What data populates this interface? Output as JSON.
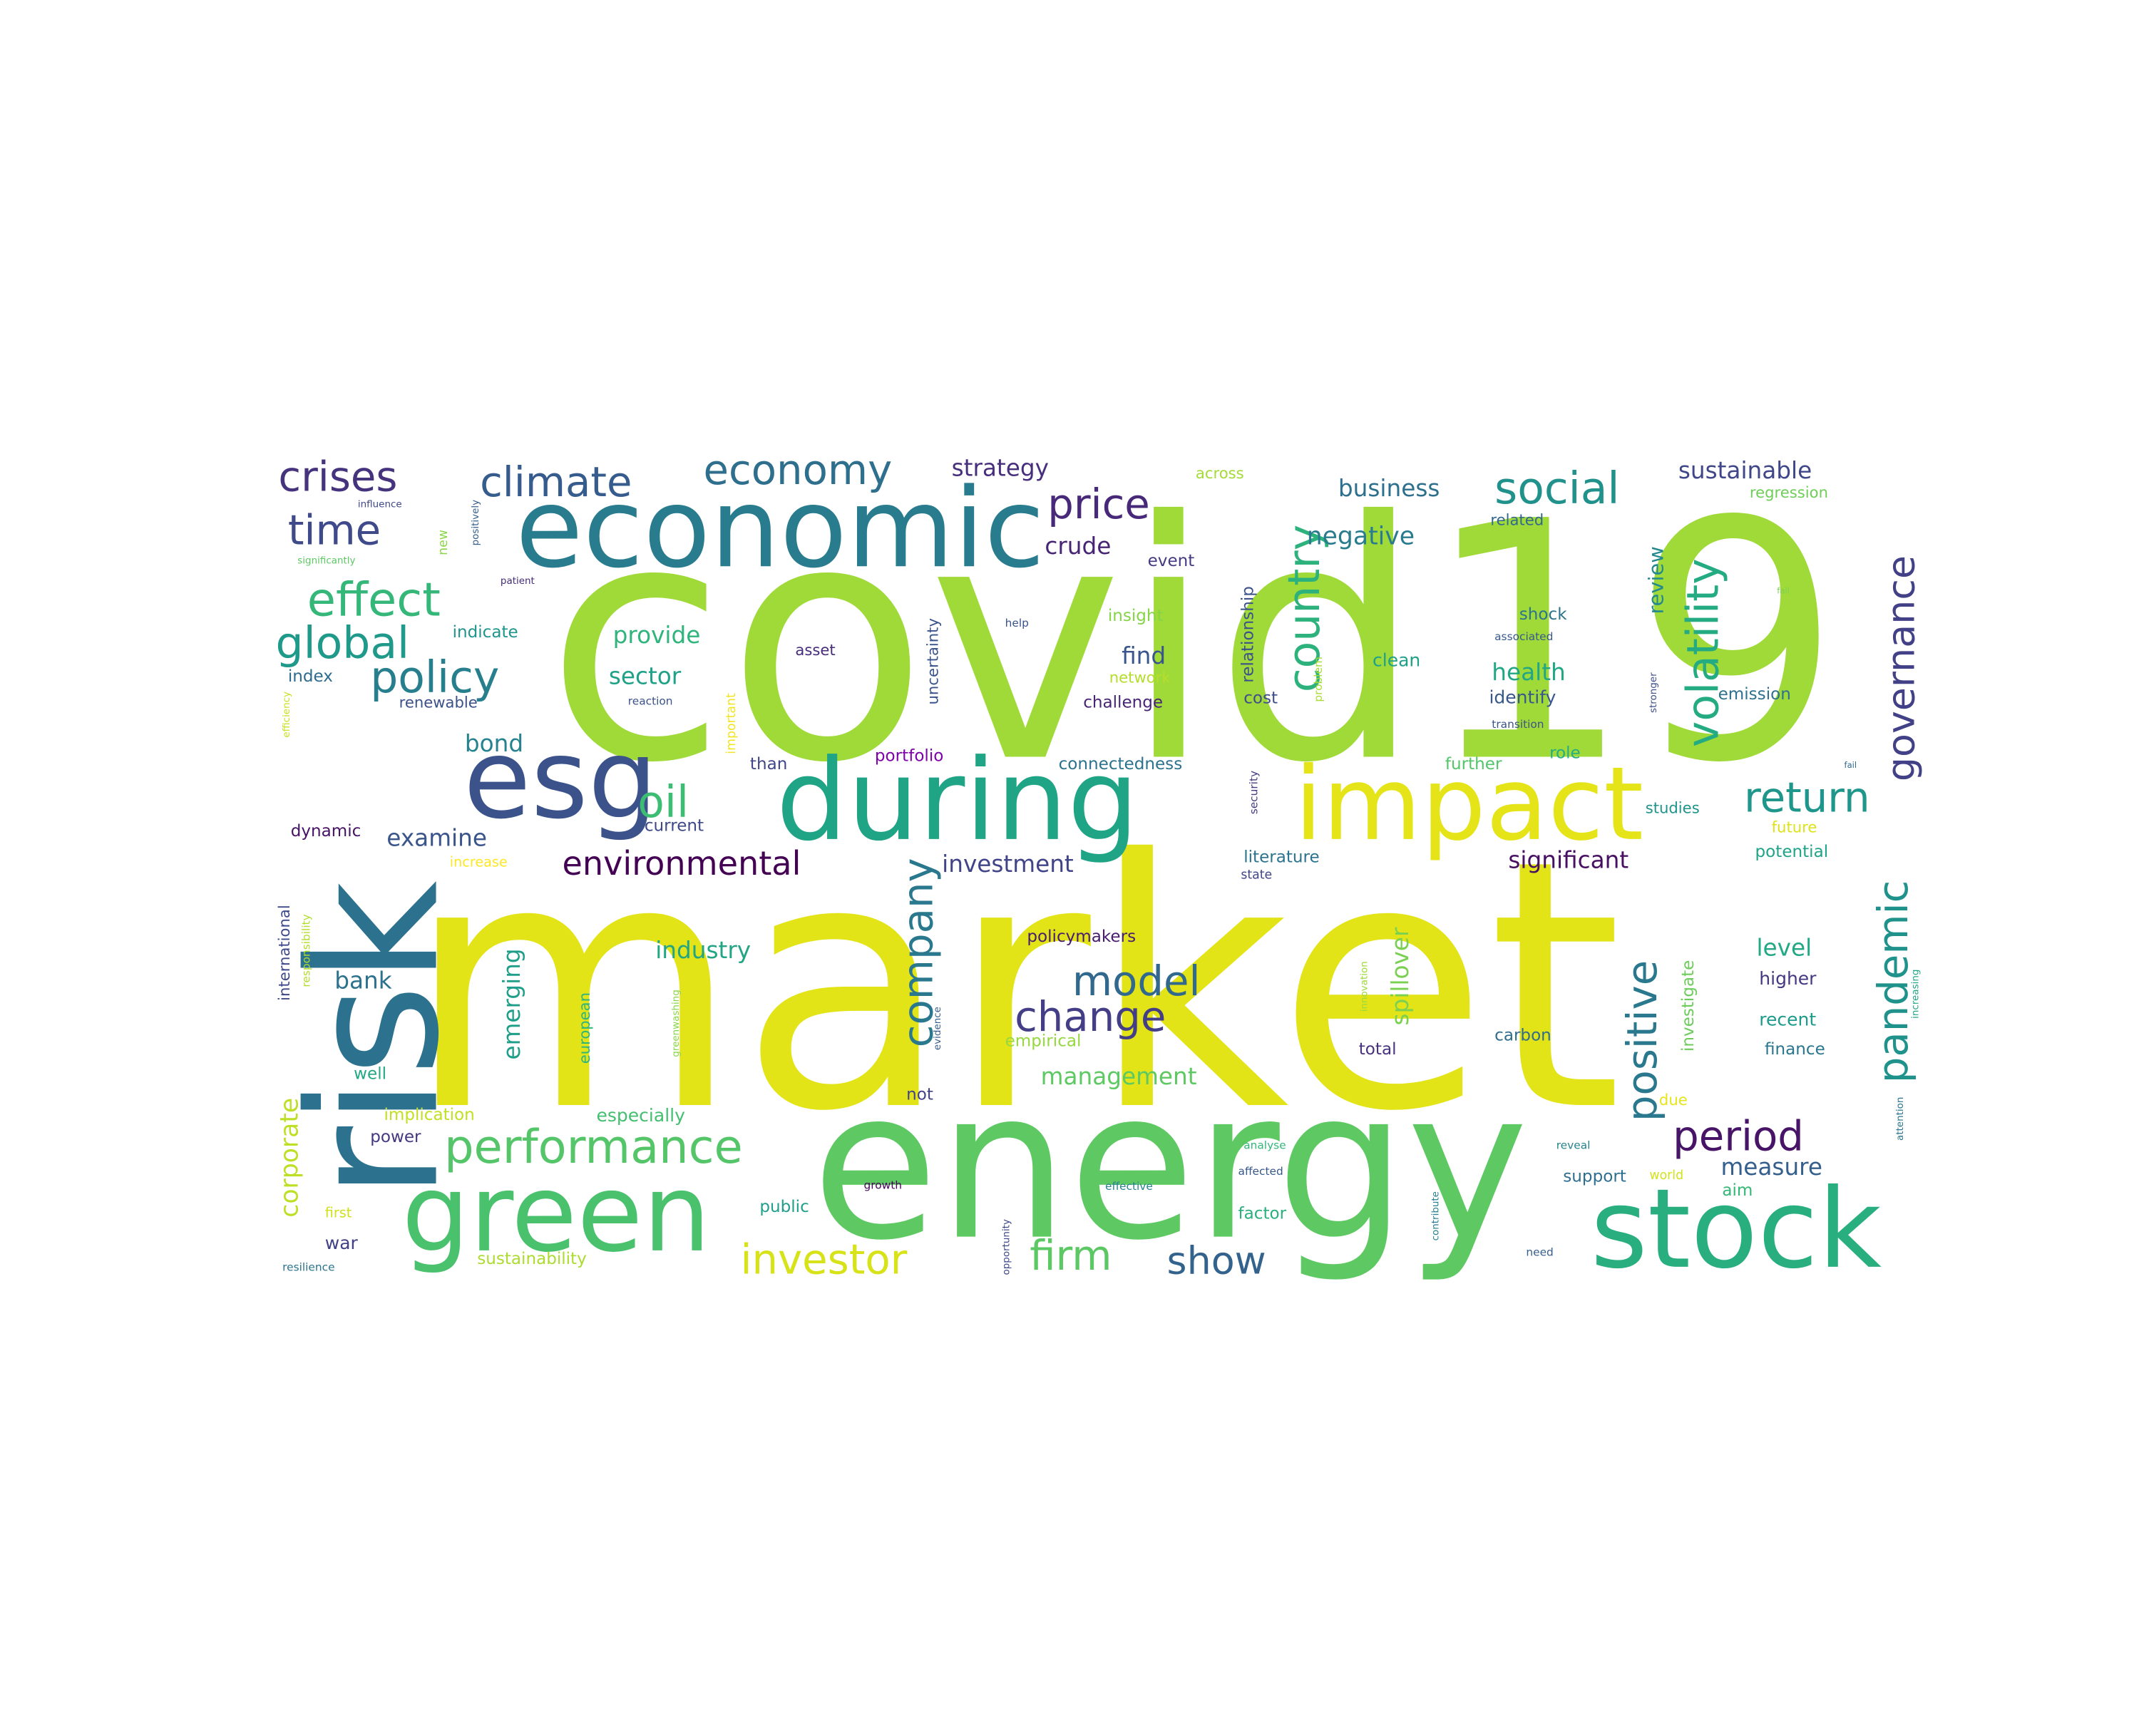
{
  "words": [
    {
      "text": "covid19",
      "color": "#a0da39"
    },
    {
      "text": "market",
      "color": "#e2e418"
    },
    {
      "text": "energy",
      "color": "#5ec962"
    },
    {
      "text": "risk",
      "color": "#2c728e"
    },
    {
      "text": "economic",
      "color": "#287c8e"
    },
    {
      "text": "during",
      "color": "#20a486"
    },
    {
      "text": "impact",
      "color": "#e5e419"
    },
    {
      "text": "green",
      "color": "#4ac16d"
    },
    {
      "text": "stock",
      "color": "#29af7f"
    },
    {
      "text": "esg",
      "color": "#3b528b"
    },
    {
      "text": "crises",
      "color": "#46337e"
    },
    {
      "text": "climate",
      "color": "#365c8d"
    },
    {
      "text": "economy",
      "color": "#2e6f8e"
    },
    {
      "text": "time",
      "color": "#3e4a89"
    },
    {
      "text": "effect",
      "color": "#35b779"
    },
    {
      "text": "global",
      "color": "#1f998a"
    },
    {
      "text": "policy",
      "color": "#277f8e"
    },
    {
      "text": "price",
      "color": "#482878"
    },
    {
      "text": "social",
      "color": "#21918c"
    },
    {
      "text": "country",
      "color": "#2db27d"
    },
    {
      "text": "volatility",
      "color": "#25ab82"
    },
    {
      "text": "governance",
      "color": "#424086"
    },
    {
      "text": "return",
      "color": "#1f968b"
    },
    {
      "text": "oil",
      "color": "#3dbc74"
    },
    {
      "text": "environmental",
      "color": "#440154"
    },
    {
      "text": "performance",
      "color": "#54c568"
    },
    {
      "text": "company",
      "color": "#2a788e"
    },
    {
      "text": "model",
      "color": "#31688e"
    },
    {
      "text": "change",
      "color": "#433e85"
    },
    {
      "text": "pandemic",
      "color": "#20928c"
    },
    {
      "text": "positive",
      "color": "#2a788e"
    },
    {
      "text": "period",
      "color": "#481467"
    },
    {
      "text": "investor",
      "color": "#d8e219"
    },
    {
      "text": "firm",
      "color": "#5cc863"
    },
    {
      "text": "show",
      "color": "#33638d"
    },
    {
      "text": "significant",
      "color": "#471063"
    },
    {
      "text": "spillover",
      "color": "#7ad151"
    },
    {
      "text": "emerging",
      "color": "#1f9e89"
    },
    {
      "text": "corporate",
      "color": "#bddf26"
    },
    {
      "text": "sustainable",
      "color": "#3f4788"
    },
    {
      "text": "business",
      "color": "#2d708e"
    },
    {
      "text": "strategy",
      "color": "#472f7d"
    },
    {
      "text": "negative",
      "color": "#297b8e"
    },
    {
      "text": "crude",
      "color": "#482475"
    },
    {
      "text": "review",
      "color": "#23898e"
    },
    {
      "text": "health",
      "color": "#22a785"
    },
    {
      "text": "find",
      "color": "#39558c"
    },
    {
      "text": "provide",
      "color": "#2fb47c"
    },
    {
      "text": "sector",
      "color": "#1fa188"
    },
    {
      "text": "bond",
      "color": "#26828e"
    },
    {
      "text": "examine",
      "color": "#3a548c"
    },
    {
      "text": "industry",
      "color": "#21a585"
    },
    {
      "text": "investment",
      "color": "#414487"
    },
    {
      "text": "bank",
      "color": "#2c718e"
    },
    {
      "text": "management",
      "color": "#5ec962"
    },
    {
      "text": "level",
      "color": "#22a884"
    },
    {
      "text": "measure",
      "color": "#355f8d"
    },
    {
      "text": "investigate",
      "color": "#6ccd5a"
    },
    {
      "text": "higher",
      "color": "#453781"
    },
    {
      "text": "recent",
      "color": "#1e9b8a"
    },
    {
      "text": "finance",
      "color": "#2a768e"
    },
    {
      "text": "carbon",
      "color": "#2f6c8e"
    },
    {
      "text": "total",
      "color": "#46327e"
    },
    {
      "text": "emission",
      "color": "#2d718e"
    },
    {
      "text": "identify",
      "color": "#38588c"
    },
    {
      "text": "relationship",
      "color": "#3b528b"
    },
    {
      "text": "uncertainty",
      "color": "#39558c"
    },
    {
      "text": "challenge",
      "color": "#482576"
    },
    {
      "text": "connectedness",
      "color": "#2c728e"
    },
    {
      "text": "portfolio",
      "color": "#7e03a8"
    },
    {
      "text": "than",
      "color": "#404688"
    },
    {
      "text": "current",
      "color": "#3e4989"
    },
    {
      "text": "dynamic",
      "color": "#471365"
    },
    {
      "text": "index",
      "color": "#2f6b8e"
    },
    {
      "text": "renewable",
      "color": "#3b518b"
    },
    {
      "text": "indicate",
      "color": "#1f958b"
    },
    {
      "text": "asset",
      "color": "#472d7b"
    },
    {
      "text": "insight",
      "color": "#86d549"
    },
    {
      "text": "network",
      "color": "#b5de2b"
    },
    {
      "text": "event",
      "color": "#443a83"
    },
    {
      "text": "cost",
      "color": "#3e4c8a"
    },
    {
      "text": "clean",
      "color": "#1fa088"
    },
    {
      "text": "literature",
      "color": "#2c738e"
    },
    {
      "text": "state",
      "color": "#404588"
    },
    {
      "text": "policymakers",
      "color": "#481c6e"
    },
    {
      "text": "empirical",
      "color": "#95d840"
    },
    {
      "text": "not",
      "color": "#414287"
    },
    {
      "text": "well",
      "color": "#22a884"
    },
    {
      "text": "implication",
      "color": "#c2df23"
    },
    {
      "text": "especially",
      "color": "#44bf70"
    },
    {
      "text": "power",
      "color": "#453781"
    },
    {
      "text": "war",
      "color": "#424186"
    },
    {
      "text": "public",
      "color": "#1f9e89"
    },
    {
      "text": "sustainability",
      "color": "#addc30"
    },
    {
      "text": "first",
      "color": "#d0e11c"
    },
    {
      "text": "resilience",
      "color": "#2b748e"
    },
    {
      "text": "international",
      "color": "#3e4a89"
    },
    {
      "text": "increase",
      "color": "#fde725"
    },
    {
      "text": "across",
      "color": "#a5db36"
    },
    {
      "text": "regression",
      "color": "#6ece58"
    },
    {
      "text": "related",
      "color": "#31688e"
    },
    {
      "text": "shock",
      "color": "#2c738e"
    },
    {
      "text": "associated",
      "color": "#38598c"
    },
    {
      "text": "transition",
      "color": "#3b528b"
    },
    {
      "text": "further",
      "color": "#52c569"
    },
    {
      "text": "role",
      "color": "#27ad81"
    },
    {
      "text": "studies",
      "color": "#1f948c"
    },
    {
      "text": "future",
      "color": "#dde318"
    },
    {
      "text": "potential",
      "color": "#20a386"
    },
    {
      "text": "factor",
      "color": "#2ab07f"
    },
    {
      "text": "support",
      "color": "#2e6e8e"
    },
    {
      "text": "aim",
      "color": "#36b677"
    },
    {
      "text": "due",
      "color": "#e7e419"
    },
    {
      "text": "world",
      "color": "#d2e21b"
    },
    {
      "text": "reveal",
      "color": "#26828e"
    },
    {
      "text": "need",
      "color": "#355e8d"
    },
    {
      "text": "analyse",
      "color": "#32b67a"
    },
    {
      "text": "affected",
      "color": "#38588c"
    },
    {
      "text": "effective",
      "color": "#25838e"
    },
    {
      "text": "growth",
      "color": "#450559"
    },
    {
      "text": "opportunity",
      "color": "#3e4989"
    },
    {
      "text": "contribute",
      "color": "#26818e"
    },
    {
      "text": "security",
      "color": "#433d84"
    },
    {
      "text": "problem",
      "color": "#a8db34"
    },
    {
      "text": "stronger",
      "color": "#3d4e8a"
    },
    {
      "text": "attention",
      "color": "#2b758e"
    },
    {
      "text": "innovation",
      "color": "#9bd93c"
    },
    {
      "text": "increasing",
      "color": "#22a785"
    },
    {
      "text": "evidence",
      "color": "#365d8d"
    },
    {
      "text": "greenwashing",
      "color": "#89d548"
    },
    {
      "text": "european",
      "color": "#2fb47c"
    },
    {
      "text": "responsibility",
      "color": "#b2dd2d"
    },
    {
      "text": "efficiency",
      "color": "#c8e020"
    },
    {
      "text": "important",
      "color": "#f1e51d"
    },
    {
      "text": "reaction",
      "color": "#3b528b"
    },
    {
      "text": "help",
      "color": "#3a538b"
    },
    {
      "text": "influence",
      "color": "#3f4889"
    },
    {
      "text": "significantly",
      "color": "#5cc863"
    },
    {
      "text": "positively",
      "color": "#355f8d"
    },
    {
      "text": "new",
      "color": "#8bd646"
    },
    {
      "text": "patient",
      "color": "#472c7a"
    },
    {
      "text": "fall",
      "color": "#7ad151"
    },
    {
      "text": "fail",
      "color": "#31688e"
    }
  ]
}
